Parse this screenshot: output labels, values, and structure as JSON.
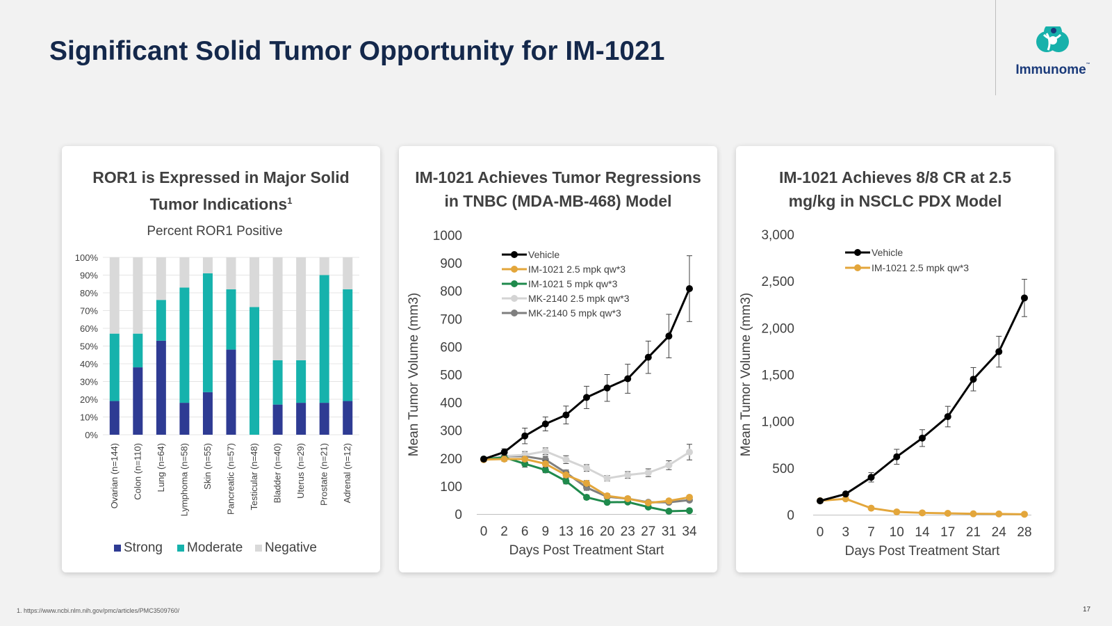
{
  "header": {
    "title": "Significant Solid Tumor Opportunity for IM-1021",
    "logo_text": "Immunome",
    "logo_tm": "™"
  },
  "colors": {
    "strong": "#2e3b93",
    "moderate": "#16b2ac",
    "negative": "#d9d9d9",
    "vehicle": "#000000",
    "im1021_25": "#e3a63b",
    "im1021_5": "#1f8a4c",
    "mk2140_25": "#d4d4d4",
    "mk2140_5": "#7f7f7f"
  },
  "panels": [
    {
      "title_lines": [
        "ROR1 is Expressed in Major Solid",
        "Tumor Indications"
      ],
      "title_sup": "1"
    },
    {
      "title_lines": [
        "IM-1021 Achieves Tumor Regressions",
        "in TNBC (MDA-MB-468) Model"
      ]
    },
    {
      "title_lines": [
        "IM-1021 Achieves 8/8 CR at 2.5",
        "mg/kg in NSCLC PDX Model"
      ]
    }
  ],
  "chart_data": [
    {
      "type": "bar",
      "stacked": true,
      "title": "Percent ROR1 Positive",
      "categories": [
        "Ovarian (n=144)",
        "Colon (n=110)",
        "Lung (n=64)",
        "Lymphoma (n=58)",
        "Skin (n=55)",
        "Pancreatic (n=57)",
        "Testicular (n=48)",
        "Bladder (n=40)",
        "Uterus (n=29)",
        "Prostate (n=21)",
        "Adrenal (n=12)"
      ],
      "series": [
        {
          "name": "Strong",
          "values": [
            19,
            38,
            53,
            18,
            24,
            48,
            0,
            17,
            18,
            18,
            19
          ]
        },
        {
          "name": "Moderate",
          "values": [
            38,
            19,
            23,
            65,
            67,
            34,
            72,
            25,
            24,
            72,
            63
          ]
        },
        {
          "name": "Negative",
          "values": [
            43,
            43,
            24,
            17,
            9,
            18,
            28,
            58,
            58,
            10,
            18
          ]
        }
      ],
      "yticks": [
        "0%",
        "10%",
        "20%",
        "30%",
        "40%",
        "50%",
        "60%",
        "70%",
        "80%",
        "90%",
        "100%"
      ],
      "ylim": [
        0,
        100
      ],
      "grid": true,
      "legend": "bottom"
    },
    {
      "type": "line",
      "x": [
        "0",
        "2",
        "6",
        "9",
        "13",
        "16",
        "20",
        "23",
        "27",
        "31",
        "34"
      ],
      "xlabel": "Days Post Treatment Start",
      "ylabel": "Mean Tumor Volume (mm3)",
      "ylim": [
        0,
        1000
      ],
      "yticks": [
        "0",
        "100",
        "200",
        "300",
        "400",
        "500",
        "600",
        "700",
        "800",
        "900",
        "1000"
      ],
      "legend": "top-left",
      "series": [
        {
          "name": "Vehicle",
          "values": [
            197,
            222,
            280,
            323,
            355,
            418,
            452,
            485,
            562,
            638,
            808
          ],
          "err": [
            8,
            12,
            28,
            25,
            32,
            40,
            48,
            52,
            58,
            78,
            118
          ]
        },
        {
          "name": "IM-1021 2.5 mpk qw*3",
          "values": [
            195,
            197,
            197,
            180,
            140,
            110,
            65,
            55,
            40,
            47,
            60
          ],
          "err": [
            6,
            8,
            10,
            12,
            10,
            10,
            8,
            7,
            6,
            6,
            6
          ]
        },
        {
          "name": "IM-1021 5 mpk qw*3",
          "values": [
            197,
            203,
            180,
            158,
            118,
            60,
            42,
            43,
            25,
            10,
            12
          ],
          "err": [
            6,
            8,
            12,
            10,
            10,
            8,
            6,
            5,
            5,
            4,
            4
          ]
        },
        {
          "name": "MK-2140 2.5 mpk qw*3",
          "values": [
            197,
            208,
            212,
            225,
            195,
            165,
            128,
            140,
            148,
            175,
            222
          ],
          "err": [
            6,
            8,
            12,
            12,
            14,
            12,
            10,
            12,
            14,
            16,
            28
          ]
        },
        {
          "name": "MK-2140 5 mpk qw*3",
          "values": [
            195,
            207,
            207,
            195,
            148,
            95,
            62,
            55,
            42,
            42,
            50
          ],
          "err": [
            6,
            8,
            12,
            12,
            10,
            10,
            8,
            6,
            5,
            5,
            5
          ]
        }
      ]
    },
    {
      "type": "line",
      "x": [
        "0",
        "3",
        "7",
        "10",
        "14",
        "17",
        "21",
        "24",
        "28"
      ],
      "xlabel": "Days Post Treatment Start",
      "ylabel": "Mean Tumor Volume (mm3)",
      "ylim": [
        0,
        3000
      ],
      "yticks": [
        "0",
        "500",
        "1,000",
        "1,500",
        "2,000",
        "2,500",
        "3,000"
      ],
      "legend": "top-left",
      "series": [
        {
          "name": "Vehicle",
          "values": [
            148,
            222,
            400,
            620,
            820,
            1050,
            1450,
            1745,
            2320
          ],
          "err": [
            10,
            15,
            50,
            80,
            90,
            110,
            125,
            165,
            200
          ]
        },
        {
          "name": "IM-1021 2.5 mpk qw*3",
          "values": [
            150,
            170,
            70,
            30,
            20,
            15,
            10,
            8,
            5
          ],
          "err": [
            5,
            8,
            6,
            4,
            3,
            3,
            2,
            2,
            2
          ]
        }
      ]
    }
  ],
  "footer": {
    "footnote": "1. https://www.ncbi.nlm.nih.gov/pmc/articles/PMC3509760/",
    "page": "17"
  }
}
